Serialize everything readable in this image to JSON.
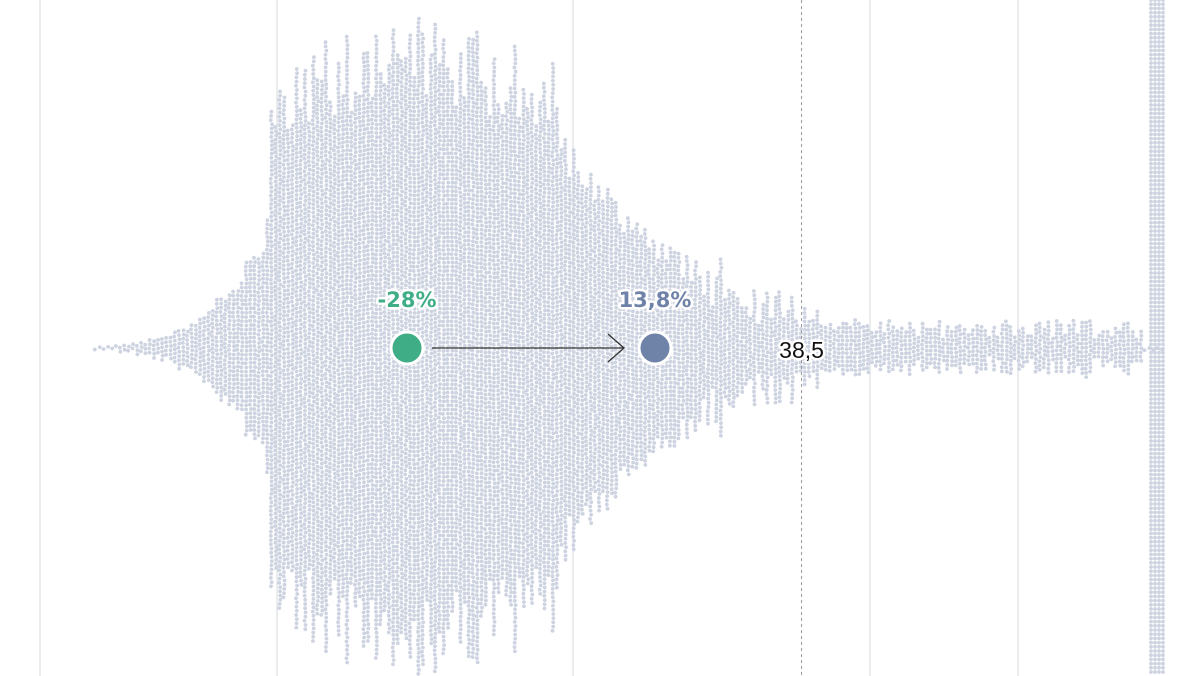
{
  "chart_data": {
    "type": "scatter",
    "subtype": "beeswarm",
    "title": "",
    "xlabel": "",
    "ylabel": "",
    "grid": true,
    "reference_line": {
      "x": 38.5,
      "label": "38,5",
      "style": "dashed"
    },
    "markers": [
      {
        "name": "start",
        "x": -28,
        "label": "-28%",
        "color": "#3fae87"
      },
      {
        "name": "end",
        "x": 13.8,
        "label": "13,8%",
        "color": "#6f82a8"
      }
    ],
    "arrow": {
      "from": -28,
      "to": 13.8
    },
    "dot_color": "#cdd3e0",
    "gridline_color": "#d6d8dc",
    "text_color": "#111111"
  }
}
